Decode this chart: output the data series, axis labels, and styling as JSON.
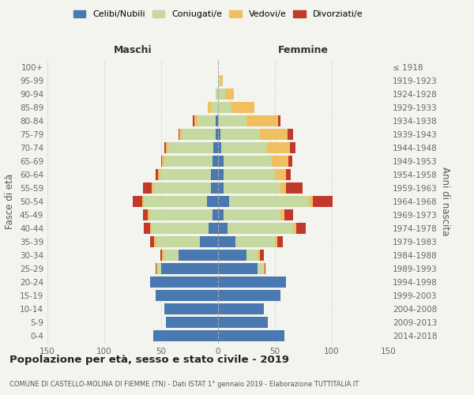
{
  "age_groups": [
    "0-4",
    "5-9",
    "10-14",
    "15-19",
    "20-24",
    "25-29",
    "30-34",
    "35-39",
    "40-44",
    "45-49",
    "50-54",
    "55-59",
    "60-64",
    "65-69",
    "70-74",
    "75-79",
    "80-84",
    "85-89",
    "90-94",
    "95-99",
    "100+"
  ],
  "birth_years": [
    "2014-2018",
    "2009-2013",
    "2004-2008",
    "1999-2003",
    "1994-1998",
    "1989-1993",
    "1984-1988",
    "1979-1983",
    "1974-1978",
    "1969-1973",
    "1964-1968",
    "1959-1963",
    "1954-1958",
    "1949-1953",
    "1944-1948",
    "1939-1943",
    "1934-1938",
    "1929-1933",
    "1924-1928",
    "1919-1923",
    "≤ 1918"
  ],
  "male_celibi": [
    57,
    46,
    47,
    55,
    60,
    50,
    35,
    16,
    8,
    5,
    10,
    6,
    6,
    5,
    4,
    2,
    2,
    0,
    0,
    0,
    0
  ],
  "male_coniugati": [
    0,
    0,
    0,
    0,
    0,
    3,
    12,
    38,
    50,
    55,
    55,
    50,
    45,
    42,
    40,
    30,
    16,
    6,
    2,
    0,
    0
  ],
  "male_vedovi": [
    0,
    0,
    0,
    0,
    0,
    1,
    2,
    2,
    2,
    2,
    2,
    2,
    2,
    2,
    2,
    2,
    3,
    3,
    0,
    0,
    0
  ],
  "male_divorziati": [
    0,
    0,
    0,
    0,
    0,
    1,
    2,
    4,
    5,
    4,
    8,
    8,
    2,
    1,
    1,
    1,
    1,
    0,
    0,
    0,
    0
  ],
  "fem_nubili": [
    58,
    44,
    40,
    55,
    60,
    35,
    25,
    15,
    8,
    5,
    10,
    5,
    5,
    5,
    3,
    2,
    0,
    0,
    0,
    0,
    0
  ],
  "fem_coniugate": [
    0,
    0,
    0,
    0,
    0,
    5,
    10,
    35,
    58,
    50,
    70,
    50,
    45,
    42,
    40,
    35,
    25,
    12,
    6,
    2,
    0
  ],
  "fem_vedove": [
    0,
    0,
    0,
    0,
    0,
    1,
    2,
    2,
    3,
    3,
    3,
    5,
    10,
    15,
    20,
    24,
    28,
    20,
    8,
    2,
    0
  ],
  "fem_divorziate": [
    0,
    0,
    0,
    0,
    0,
    1,
    3,
    5,
    8,
    8,
    18,
    14,
    4,
    3,
    5,
    5,
    2,
    0,
    0,
    0,
    0
  ],
  "color_celibi": "#4a78b0",
  "color_coniugati": "#c5d9a0",
  "color_vedovi": "#f0c060",
  "color_divorziati": "#c0392b",
  "bg_color": "#f4f4ee",
  "xlim": 150,
  "title": "Popolazione per età, sesso e stato civile - 2019",
  "subtitle": "COMUNE DI CASTELLO-MOLINA DI FIEMME (TN) - Dati ISTAT 1° gennaio 2019 - Elaborazione TUTTITALIA.IT",
  "ylabel_left": "Fasce di età",
  "ylabel_right": "Anni di nascita",
  "label_maschi": "Maschi",
  "label_femmine": "Femmine",
  "legend_labels": [
    "Celibi/Nubili",
    "Coniugati/e",
    "Vedovi/e",
    "Divorziati/e"
  ]
}
